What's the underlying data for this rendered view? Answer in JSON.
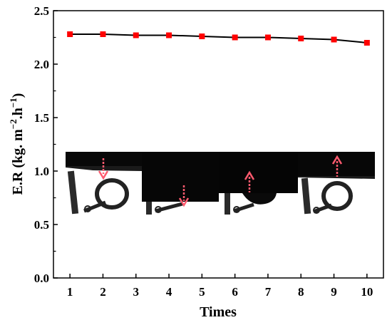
{
  "chart_data": {
    "type": "line",
    "xlabel": "Times",
    "ylabel_parts": {
      "main": "E.R (kg. m",
      "sup1": "−2",
      "mid": ".h",
      "sup2": "−1",
      "end": ")"
    },
    "x": [
      1,
      2,
      3,
      4,
      5,
      6,
      7,
      8,
      9,
      10
    ],
    "x_tick_labels": [
      "1",
      "2",
      "3",
      "4",
      "5",
      "6",
      "7",
      "8",
      "9",
      "10"
    ],
    "y_tick_labels": [
      "0.0",
      "0.5",
      "1.0",
      "1.5",
      "2.0",
      "2.5"
    ],
    "y_ticks": [
      0,
      0.5,
      1.0,
      1.5,
      2.0,
      2.5
    ],
    "series": [
      {
        "values": [
          2.28,
          2.28,
          2.27,
          2.27,
          2.26,
          2.25,
          2.25,
          2.24,
          2.23,
          2.2
        ],
        "line_color": "#000000",
        "marker": "square",
        "marker_color": "#ff0000"
      }
    ],
    "xlim": [
      0.5,
      10.5
    ],
    "ylim": [
      0,
      2.5
    ],
    "grid": false,
    "legend": "none",
    "inset": {
      "panels": 4,
      "arrow_color": "#ff5a6e",
      "arrow_directions": [
        "down",
        "down",
        "up",
        "up"
      ]
    }
  }
}
